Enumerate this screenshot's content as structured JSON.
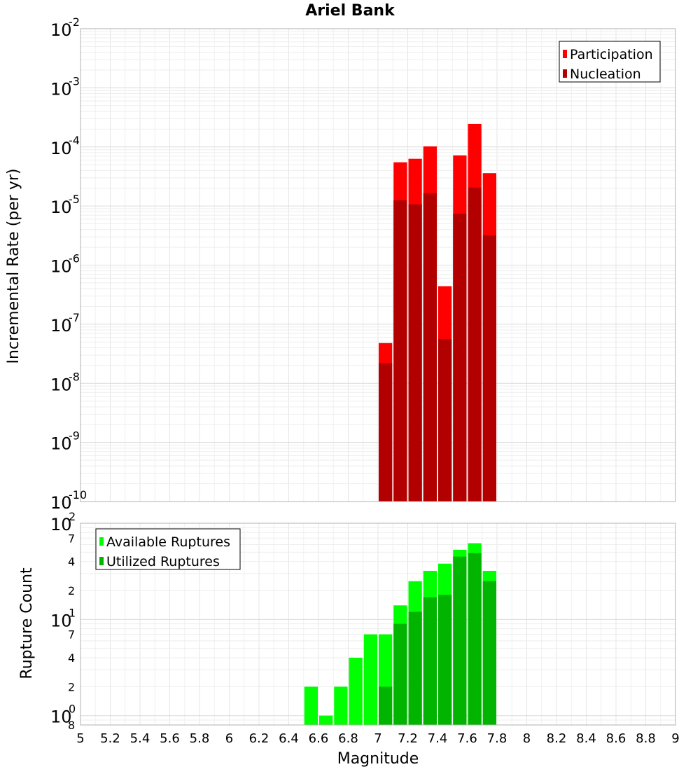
{
  "chart_data": [
    {
      "type": "bar",
      "title": "Ariel Bank",
      "xlabel": "",
      "ylabel": "Incremental Rate (per yr)",
      "xlim": [
        5,
        9
      ],
      "ylim": [
        1e-10,
        0.01
      ],
      "yscale": "log",
      "grid": true,
      "legend_position": "top-right",
      "y_tick_labels": [
        {
          "value": 0.01,
          "base": "10",
          "exp": "-2"
        },
        {
          "value": 0.001,
          "base": "10",
          "exp": "-3"
        },
        {
          "value": 0.0001,
          "base": "10",
          "exp": "-4"
        },
        {
          "value": 1e-05,
          "base": "10",
          "exp": "-5"
        },
        {
          "value": 1e-06,
          "base": "10",
          "exp": "-6"
        },
        {
          "value": 1e-07,
          "base": "10",
          "exp": "-7"
        },
        {
          "value": 1e-08,
          "base": "10",
          "exp": "-8"
        },
        {
          "value": 1e-09,
          "base": "10",
          "exp": "-9"
        },
        {
          "value": 1e-10,
          "base": "10",
          "exp": "-10"
        }
      ],
      "bar_width": 0.1,
      "x": [
        7.05,
        7.15,
        7.25,
        7.35,
        7.45,
        7.55,
        7.65,
        7.75
      ],
      "series": [
        {
          "name": "Participation",
          "color": "#ff0000",
          "values": [
            4.8e-08,
            5.5e-05,
            6.3e-05,
            0.000102,
            4.4e-07,
            7.2e-05,
            0.000245,
            3.6e-05
          ]
        },
        {
          "name": "Nucleation",
          "color": "#b20000",
          "values": [
            2.2e-08,
            1.25e-05,
            1.07e-05,
            1.65e-05,
            5.6e-08,
            7.4e-06,
            2.05e-05,
            3.2e-06
          ]
        }
      ]
    },
    {
      "type": "bar",
      "title": "",
      "xlabel": "Magnitude",
      "ylabel": "Rupture Count",
      "xlim": [
        5,
        9
      ],
      "ylim": [
        0.8,
        100
      ],
      "yscale": "log",
      "grid": true,
      "legend_position": "top-left",
      "x_ticks": [
        "5",
        "5.2",
        "5.4",
        "5.6",
        "5.8",
        "6",
        "6.2",
        "6.4",
        "6.6",
        "6.8",
        "7",
        "7.2",
        "7.4",
        "7.6",
        "7.8",
        "8",
        "8.2",
        "8.4",
        "8.6",
        "8.8",
        "9"
      ],
      "y_tick_labels": [
        {
          "value": 100,
          "base": "10",
          "exp": "2"
        },
        {
          "value": 10,
          "base": "10",
          "exp": "1"
        },
        {
          "value": 1,
          "base": "10",
          "exp": "0"
        }
      ],
      "y_minor_labels": [
        {
          "value": 70,
          "label": "7"
        },
        {
          "value": 40,
          "label": "4"
        },
        {
          "value": 20,
          "label": "2"
        },
        {
          "value": 7,
          "label": "7"
        },
        {
          "value": 4,
          "label": "4"
        },
        {
          "value": 2,
          "label": "2"
        },
        {
          "value": 0.8,
          "label": "8"
        }
      ],
      "bar_width": 0.1,
      "x": [
        6.55,
        6.65,
        6.75,
        6.85,
        6.95,
        7.05,
        7.15,
        7.25,
        7.35,
        7.45,
        7.55,
        7.65,
        7.75
      ],
      "series": [
        {
          "name": "Available Ruptures",
          "color": "#00ff00",
          "values": [
            2,
            1,
            2,
            4,
            7,
            7,
            14,
            25,
            32,
            38,
            53,
            62,
            32
          ]
        },
        {
          "name": "Utilized Ruptures",
          "color": "#00b400",
          "values": [
            null,
            null,
            null,
            null,
            null,
            2,
            9,
            12,
            17,
            18,
            45,
            49,
            25
          ]
        }
      ]
    }
  ]
}
